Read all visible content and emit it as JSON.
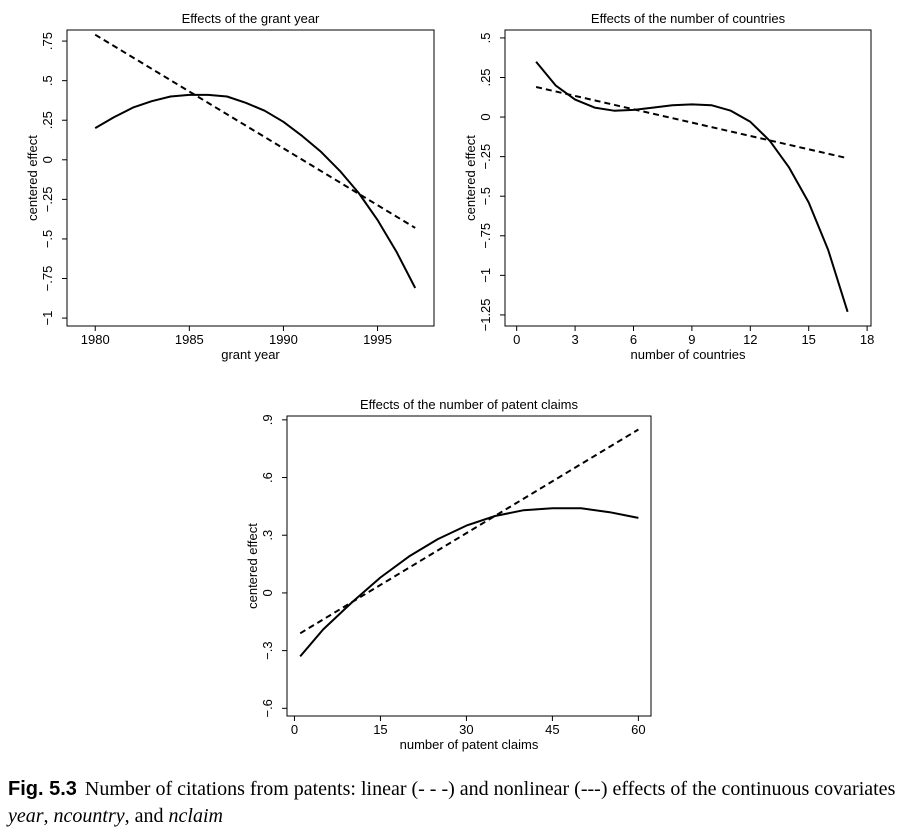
{
  "chart_data": [
    {
      "type": "line",
      "title": "Effects of the grant year",
      "xlabel": "grant year",
      "ylabel": "centered effect",
      "xlim": [
        1978.5,
        1998
      ],
      "ylim": [
        -1.05,
        0.82
      ],
      "xticks": [
        1980,
        1985,
        1990,
        1995
      ],
      "xtick_labels": [
        "1980",
        "1985",
        "1990",
        "1995"
      ],
      "yticks": [
        -1,
        -0.75,
        -0.5,
        -0.25,
        0,
        0.25,
        0.5,
        0.75
      ],
      "ytick_labels": [
        "−1",
        "−.75",
        "−.5",
        "−.25",
        "0",
        ".25",
        ".5",
        ".75"
      ],
      "series": [
        {
          "style": "solid",
          "x": [
            1980,
            1981,
            1982,
            1983,
            1984,
            1985,
            1986,
            1987,
            1988,
            1989,
            1990,
            1991,
            1992,
            1993,
            1994,
            1995,
            1996,
            1997
          ],
          "y": [
            0.2,
            0.27,
            0.33,
            0.37,
            0.4,
            0.41,
            0.41,
            0.4,
            0.36,
            0.31,
            0.24,
            0.15,
            0.05,
            -0.07,
            -0.21,
            -0.38,
            -0.58,
            -0.81
          ]
        },
        {
          "style": "dashed",
          "x": [
            1980,
            1997
          ],
          "y": [
            0.79,
            -0.43
          ]
        }
      ]
    },
    {
      "type": "line",
      "title": "Effects of the number of countries",
      "xlabel": "number of countries",
      "ylabel": "centered effect",
      "xlim": [
        -0.6,
        18.2
      ],
      "ylim": [
        -1.32,
        0.55
      ],
      "xticks": [
        0,
        3,
        6,
        9,
        12,
        15,
        18
      ],
      "xtick_labels": [
        "0",
        "3",
        "6",
        "9",
        "12",
        "15",
        "18"
      ],
      "yticks": [
        -1.25,
        -1,
        -0.75,
        -0.5,
        -0.25,
        0,
        0.25,
        0.5
      ],
      "ytick_labels": [
        "−1.25",
        "−1",
        "−.75",
        "−.5",
        "−.25",
        "0",
        ".25",
        ".5"
      ],
      "series": [
        {
          "style": "solid",
          "x": [
            1,
            2,
            3,
            4,
            5,
            6,
            7,
            8,
            9,
            10,
            11,
            12,
            13,
            14,
            15,
            16,
            17
          ],
          "y": [
            0.35,
            0.2,
            0.11,
            0.06,
            0.04,
            0.045,
            0.06,
            0.075,
            0.08,
            0.075,
            0.04,
            -0.03,
            -0.15,
            -0.32,
            -0.54,
            -0.84,
            -1.23
          ]
        },
        {
          "style": "dashed",
          "x": [
            1,
            17
          ],
          "y": [
            0.19,
            -0.26
          ]
        }
      ]
    },
    {
      "type": "line",
      "title": "Effects of the number of patent claims",
      "xlabel": "number of patent claims",
      "ylabel": "centered effect",
      "xlim": [
        -1.3,
        62.2
      ],
      "ylim": [
        -0.64,
        0.92
      ],
      "xticks": [
        0,
        15,
        30,
        45,
        60
      ],
      "xtick_labels": [
        "0",
        "15",
        "30",
        "45",
        "60"
      ],
      "yticks": [
        -0.6,
        -0.3,
        0,
        0.3,
        0.6,
        0.9
      ],
      "ytick_labels": [
        "−.6",
        "−.3",
        "0",
        ".3",
        ".6",
        ".9"
      ],
      "series": [
        {
          "style": "solid",
          "x": [
            1,
            5,
            10,
            15,
            20,
            25,
            30,
            35,
            40,
            45,
            50,
            55,
            60
          ],
          "y": [
            -0.33,
            -0.19,
            -0.05,
            0.08,
            0.19,
            0.28,
            0.35,
            0.4,
            0.43,
            0.44,
            0.44,
            0.42,
            0.39
          ]
        },
        {
          "style": "dashed",
          "x": [
            1,
            60
          ],
          "y": [
            -0.21,
            0.85
          ]
        }
      ]
    }
  ],
  "caption": {
    "label": "Fig. 5.3",
    "text_1": "Number of citations from patents: linear (- - -) and nonlinear (---) effects of the continuous covariates ",
    "var_1": "year",
    "sep_1": ", ",
    "var_2": "ncountry",
    "sep_2": ", and ",
    "var_3": "nclaim"
  }
}
